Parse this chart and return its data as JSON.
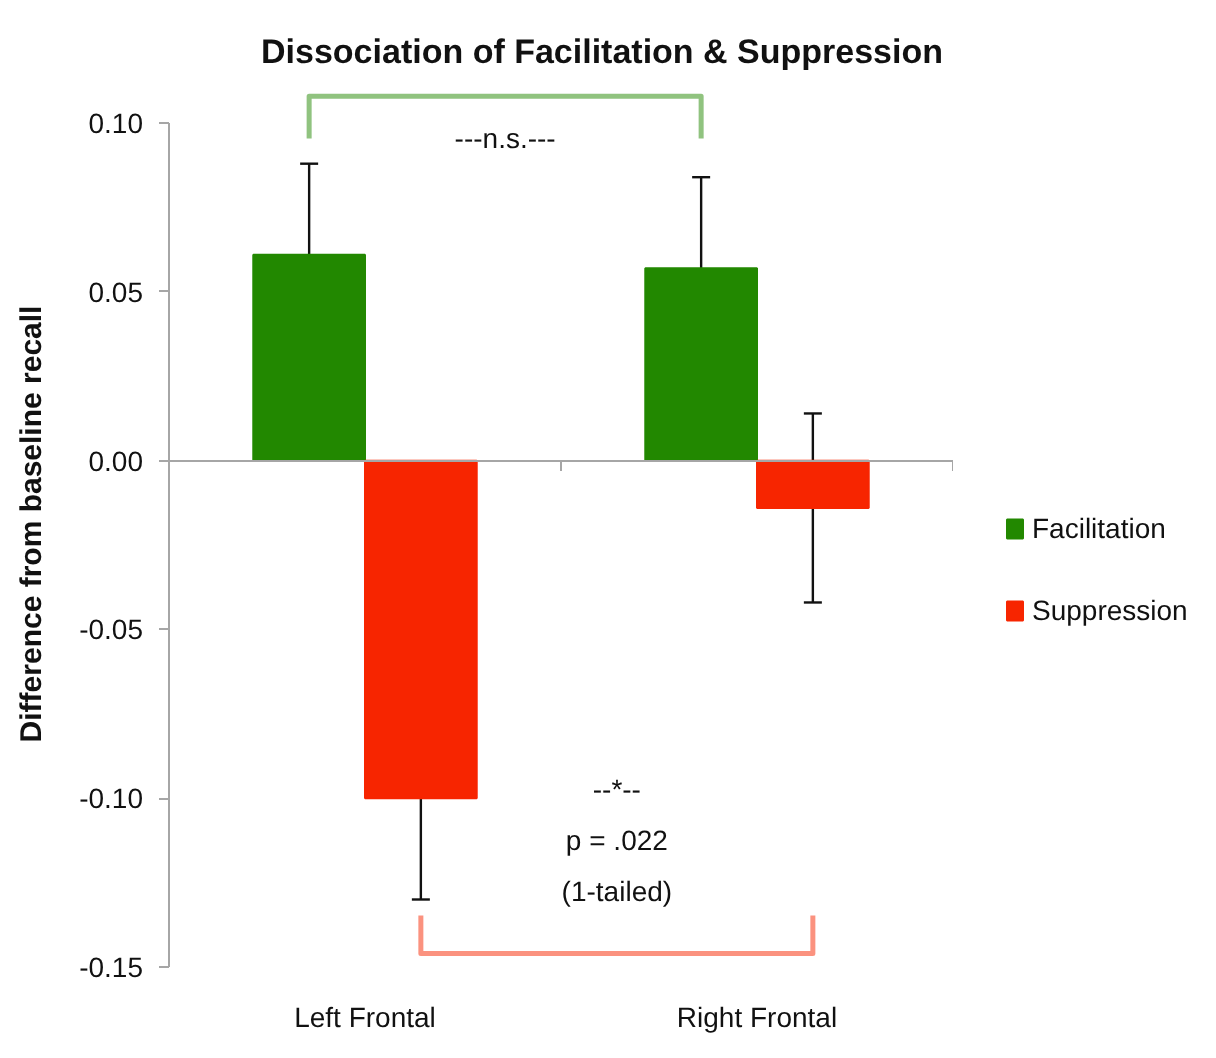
{
  "chart_data": {
    "type": "bar",
    "title": "Dissociation of Facilitation & Suppression",
    "ylabel": "Difference from baseline recall",
    "categories": [
      "Left Frontal",
      "Right Frontal"
    ],
    "series": [
      {
        "name": "Facilitation",
        "color": "#228800",
        "values": [
          0.061,
          0.057
        ],
        "errors": [
          0.027,
          0.027
        ]
      },
      {
        "name": "Suppression",
        "color": "#f72500",
        "values": [
          -0.1,
          -0.014
        ],
        "errors": [
          0.03,
          0.028
        ]
      }
    ],
    "ylim": [
      -0.15,
      0.1
    ],
    "yticks": [
      {
        "value": -0.15,
        "label": "-0.15"
      },
      {
        "value": -0.1,
        "label": "-0.10"
      },
      {
        "value": -0.05,
        "label": "-0.05"
      },
      {
        "value": 0,
        "label": "0.00"
      },
      {
        "value": 0.05,
        "label": "0.05"
      },
      {
        "value": 0.1,
        "label": "0.10"
      }
    ],
    "legend": "right",
    "annotations": [
      "---n.s.---",
      "--*--\np = .022\n(1-tailed)"
    ]
  }
}
